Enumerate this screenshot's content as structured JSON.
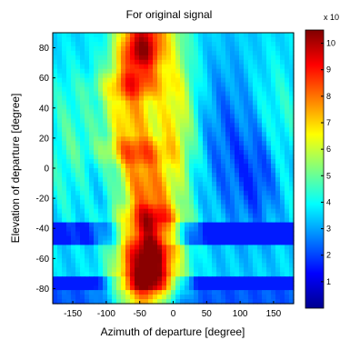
{
  "chart_data": {
    "type": "heatmap",
    "title": "For original signal",
    "xlabel": "Azimuth of departure [degree]",
    "ylabel": "Elevation of departure [degree]",
    "xlim": [
      -180,
      180
    ],
    "ylim": [
      -90,
      90
    ],
    "x_ticks": [
      "-150",
      "-100",
      "-50",
      "0",
      "50",
      "100",
      "150"
    ],
    "y_ticks": [
      "80",
      "60",
      "40",
      "20",
      "0",
      "-20",
      "-40",
      "-60",
      "-80"
    ],
    "colorbar": {
      "multiplier_label": "x 10",
      "range": [
        0,
        10.5
      ],
      "ticks": [
        "10",
        "9",
        "8",
        "7",
        "6",
        "5",
        "4",
        "3",
        "2",
        "1"
      ],
      "colormap": "jet"
    },
    "approximate_field": {
      "description_units": "relative magnitude on colorbar scale",
      "ridges": [
        {
          "azimuth": -45,
          "elevation": 80,
          "value": 9.5
        },
        {
          "azimuth": -55,
          "elevation": 55,
          "value": 8.5
        },
        {
          "azimuth": -60,
          "elevation": 20,
          "value": 8.0
        },
        {
          "azimuth": -60,
          "elevation": -20,
          "value": 8.5
        },
        {
          "azimuth": -45,
          "elevation": -60,
          "value": 9.8
        }
      ]
    }
  }
}
